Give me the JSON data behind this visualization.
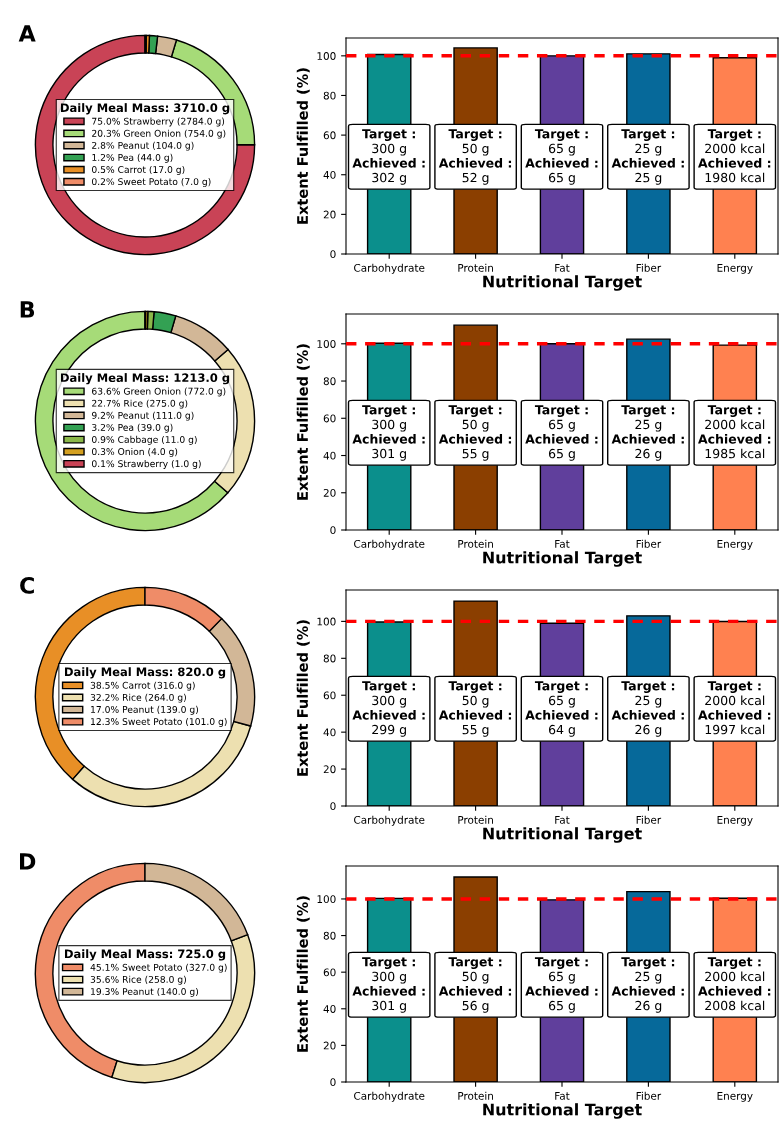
{
  "chart_data": [
    {
      "type": "donut",
      "title": "A",
      "legend_title": "Daily Meal Mass: 3710.0 g",
      "legend": "center",
      "categories": [
        "75.0% Strawberry (2784.0 g)",
        "20.3% Green Onion (754.0 g)",
        "2.8% Peanut (104.0 g)",
        "1.2% Pea (44.0 g)",
        "0.5% Carrot (17.0 g)",
        "0.2% Sweet Potato (7.0 g)"
      ],
      "values": [
        2784.0,
        754.0,
        104.0,
        44.0,
        17.0,
        7.0
      ],
      "colors": [
        "#c94356",
        "#a6db78",
        "#d2b797",
        "#33a153",
        "#e88f26",
        "#ef8c68"
      ]
    },
    {
      "type": "bar",
      "ylabel": "Extent Fulfilled (%)",
      "xlabel": "Nutritional Target",
      "categories": [
        "Carbohydrate",
        "Protein",
        "Fat",
        "Fiber",
        "Energy"
      ],
      "values": [
        100.7,
        104,
        100,
        101,
        99
      ],
      "colors": [
        "#0b8f8c",
        "#8b3f00",
        "#603f9c",
        "#06699a",
        "#ff8150"
      ],
      "ylim": [
        0,
        109
      ],
      "yticks": [
        0,
        20,
        40,
        60,
        80,
        100
      ],
      "ref_lines": [
        {
          "axis": "y",
          "value": 100,
          "color": "#ff0000",
          "line_style": "dashed"
        }
      ],
      "annotations": [
        "Target :\n300 g\nAchieved :\n302 g",
        "Target :\n50 g\nAchieved :\n52 g",
        "Target :\n65 g\nAchieved :\n65 g",
        "Target :\n25 g\nAchieved :\n25 g",
        "Target :\n2000 kcal\nAchieved :\n1980 kcal"
      ]
    },
    {
      "type": "donut",
      "title": "B",
      "legend_title": "Daily Meal Mass: 1213.0 g",
      "legend": "center",
      "categories": [
        "63.6% Green Onion (772.0 g)",
        "22.7% Rice (275.0 g)",
        "9.2% Peanut (111.0 g)",
        "3.2% Pea (39.0 g)",
        "0.9% Cabbage (11.0 g)",
        "0.3% Onion (4.0 g)",
        "0.1% Strawberry (1.0 g)"
      ],
      "values": [
        772.0,
        275.0,
        111.0,
        39.0,
        11.0,
        4.0,
        1.0
      ],
      "colors": [
        "#a6db78",
        "#ede0b0",
        "#d2b797",
        "#33a153",
        "#8bb84a",
        "#d4a020",
        "#c94356"
      ]
    },
    {
      "type": "bar",
      "ylabel": "Extent Fulfilled (%)",
      "xlabel": "Nutritional Target",
      "categories": [
        "Carbohydrate",
        "Protein",
        "Fat",
        "Fiber",
        "Energy"
      ],
      "values": [
        100.3,
        110,
        100,
        102.5,
        99.3
      ],
      "colors": [
        "#0b8f8c",
        "#8b3f00",
        "#603f9c",
        "#06699a",
        "#ff8150"
      ],
      "ylim": [
        0,
        116
      ],
      "yticks": [
        0,
        20,
        40,
        60,
        80,
        100
      ],
      "ref_lines": [
        {
          "axis": "y",
          "value": 100,
          "color": "#ff0000",
          "line_style": "dashed"
        }
      ],
      "annotations": [
        "Target :\n300 g\nAchieved :\n301 g",
        "Target :\n50 g\nAchieved :\n55 g",
        "Target :\n65 g\nAchieved :\n65 g",
        "Target :\n25 g\nAchieved :\n26 g",
        "Target :\n2000 kcal\nAchieved :\n1985 kcal"
      ]
    },
    {
      "type": "donut",
      "title": "C",
      "legend_title": "Daily Meal Mass: 820.0 g",
      "legend": "center",
      "categories": [
        "38.5% Carrot (316.0 g)",
        "32.2% Rice (264.0 g)",
        "17.0% Peanut (139.0 g)",
        "12.3% Sweet Potato (101.0 g)"
      ],
      "values": [
        316.0,
        264.0,
        139.0,
        101.0
      ],
      "colors": [
        "#e88f26",
        "#ede0b0",
        "#d2b797",
        "#ef8c68"
      ]
    },
    {
      "type": "bar",
      "ylabel": "Extent Fulfilled (%)",
      "xlabel": "Nutritional Target",
      "categories": [
        "Carbohydrate",
        "Protein",
        "Fat",
        "Fiber",
        "Energy"
      ],
      "values": [
        99.7,
        111,
        99,
        103,
        99.9
      ],
      "colors": [
        "#0b8f8c",
        "#8b3f00",
        "#603f9c",
        "#06699a",
        "#ff8150"
      ],
      "ylim": [
        0,
        117
      ],
      "yticks": [
        0,
        20,
        40,
        60,
        80,
        100
      ],
      "ref_lines": [
        {
          "axis": "y",
          "value": 100,
          "color": "#ff0000",
          "line_style": "dashed"
        }
      ],
      "annotations": [
        "Target :\n300 g\nAchieved :\n299 g",
        "Target :\n50 g\nAchieved :\n55 g",
        "Target :\n65 g\nAchieved :\n64 g",
        "Target :\n25 g\nAchieved :\n26 g",
        "Target :\n2000 kcal\nAchieved :\n1997 kcal"
      ]
    },
    {
      "type": "donut",
      "title": "D",
      "legend_title": "Daily Meal Mass: 725.0 g",
      "legend": "center",
      "categories": [
        "45.1% Sweet Potato (327.0 g)",
        "35.6% Rice (258.0 g)",
        "19.3% Peanut (140.0 g)"
      ],
      "values": [
        327.0,
        258.0,
        140.0
      ],
      "colors": [
        "#ef8c68",
        "#ede0b0",
        "#d2b797"
      ]
    },
    {
      "type": "bar",
      "ylabel": "Extent Fulfilled (%)",
      "xlabel": "Nutritional Target",
      "categories": [
        "Carbohydrate",
        "Protein",
        "Fat",
        "Fiber",
        "Energy"
      ],
      "values": [
        100.3,
        112,
        99.5,
        104,
        100.4
      ],
      "colors": [
        "#0b8f8c",
        "#8b3f00",
        "#603f9c",
        "#06699a",
        "#ff8150"
      ],
      "ylim": [
        0,
        118
      ],
      "yticks": [
        0,
        20,
        40,
        60,
        80,
        100
      ],
      "ref_lines": [
        {
          "axis": "y",
          "value": 100,
          "color": "#ff0000",
          "line_style": "dashed"
        }
      ],
      "annotations": [
        "Target :\n300 g\nAchieved :\n301 g",
        "Target :\n50 g\nAchieved :\n56 g",
        "Target :\n65 g\nAchieved :\n65 g",
        "Target :\n25 g\nAchieved :\n26 g",
        "Target :\n2000 kcal\nAchieved :\n2008 kcal"
      ]
    }
  ]
}
